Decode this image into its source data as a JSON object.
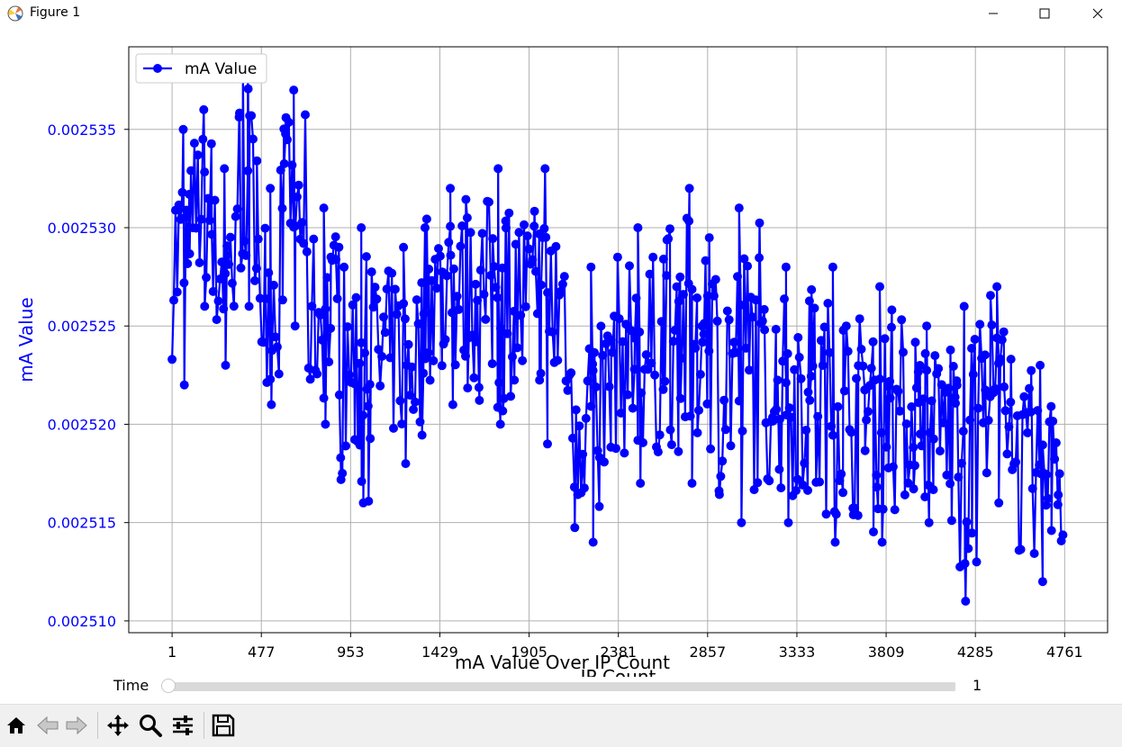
{
  "window": {
    "title": "Figure 1",
    "icon": "matplotlib-icon",
    "controls": [
      "minimize-icon",
      "maximize-icon",
      "close-icon"
    ]
  },
  "colors": {
    "series": "#0000ff",
    "axis_text": "#0000ff",
    "grid": "#b0b0b0"
  },
  "slider": {
    "label": "Time",
    "value": "1",
    "fraction": 0
  },
  "toolbar": {
    "icons": [
      "home-icon",
      "back-icon",
      "forward-icon",
      "pan-icon",
      "zoom-icon",
      "configure-icon",
      "save-icon"
    ]
  },
  "chart_data": {
    "type": "line",
    "title": "mA Value Over IP Count",
    "xlabel": "IP Count",
    "ylabel": "mA Value",
    "x_ticks": [
      1,
      477,
      953,
      1429,
      1905,
      2381,
      2857,
      3333,
      3809,
      4285,
      4761
    ],
    "y_ticks": [
      "0.002510",
      "0.002515",
      "0.002520",
      "0.002525",
      "0.002530",
      "0.002535"
    ],
    "xlim": [
      -230,
      4990
    ],
    "ylim": [
      0.0025094,
      0.0025392
    ],
    "grid": true,
    "legend": {
      "position": "top-left",
      "entries": [
        "mA Value"
      ]
    },
    "series": [
      {
        "name": "mA Value",
        "marker": "circle",
        "bands": [
          {
            "x0": 1,
            "x1": 120,
            "ymin": 0.002522,
            "ymax": 0.002535
          },
          {
            "x0": 120,
            "x1": 220,
            "ymin": 0.002526,
            "ymax": 0.002536
          },
          {
            "x0": 220,
            "x1": 340,
            "ymin": 0.002523,
            "ymax": 0.002533
          },
          {
            "x0": 340,
            "x1": 470,
            "ymin": 0.002526,
            "ymax": 0.002538
          },
          {
            "x0": 470,
            "x1": 580,
            "ymin": 0.002521,
            "ymax": 0.002532
          },
          {
            "x0": 580,
            "x1": 720,
            "ymin": 0.002525,
            "ymax": 0.002537
          },
          {
            "x0": 720,
            "x1": 900,
            "ymin": 0.00252,
            "ymax": 0.002531
          },
          {
            "x0": 900,
            "x1": 1120,
            "ymin": 0.002516,
            "ymax": 0.00253
          },
          {
            "x0": 1120,
            "x1": 1350,
            "ymin": 0.002518,
            "ymax": 0.002529
          },
          {
            "x0": 1350,
            "x1": 1620,
            "ymin": 0.002521,
            "ymax": 0.002532
          },
          {
            "x0": 1620,
            "x1": 1860,
            "ymin": 0.00252,
            "ymax": 0.002533
          },
          {
            "x0": 1860,
            "x1": 2120,
            "ymin": 0.002519,
            "ymax": 0.002533
          },
          {
            "x0": 2120,
            "x1": 2350,
            "ymin": 0.002514,
            "ymax": 0.002528
          },
          {
            "x0": 2350,
            "x1": 2620,
            "ymin": 0.002517,
            "ymax": 0.00253
          },
          {
            "x0": 2620,
            "x1": 2900,
            "ymin": 0.002517,
            "ymax": 0.002532
          },
          {
            "x0": 2900,
            "x1": 3150,
            "ymin": 0.002515,
            "ymax": 0.002531
          },
          {
            "x0": 3150,
            "x1": 3400,
            "ymin": 0.002515,
            "ymax": 0.002528
          },
          {
            "x0": 3400,
            "x1": 3650,
            "ymin": 0.002514,
            "ymax": 0.002528
          },
          {
            "x0": 3650,
            "x1": 3900,
            "ymin": 0.002514,
            "ymax": 0.002527
          },
          {
            "x0": 3900,
            "x1": 4150,
            "ymin": 0.002515,
            "ymax": 0.002525
          },
          {
            "x0": 4150,
            "x1": 4300,
            "ymin": 0.002511,
            "ymax": 0.002526
          },
          {
            "x0": 4300,
            "x1": 4500,
            "ymin": 0.002516,
            "ymax": 0.002527
          },
          {
            "x0": 4500,
            "x1": 4761,
            "ymin": 0.002512,
            "ymax": 0.002523
          }
        ]
      }
    ]
  }
}
